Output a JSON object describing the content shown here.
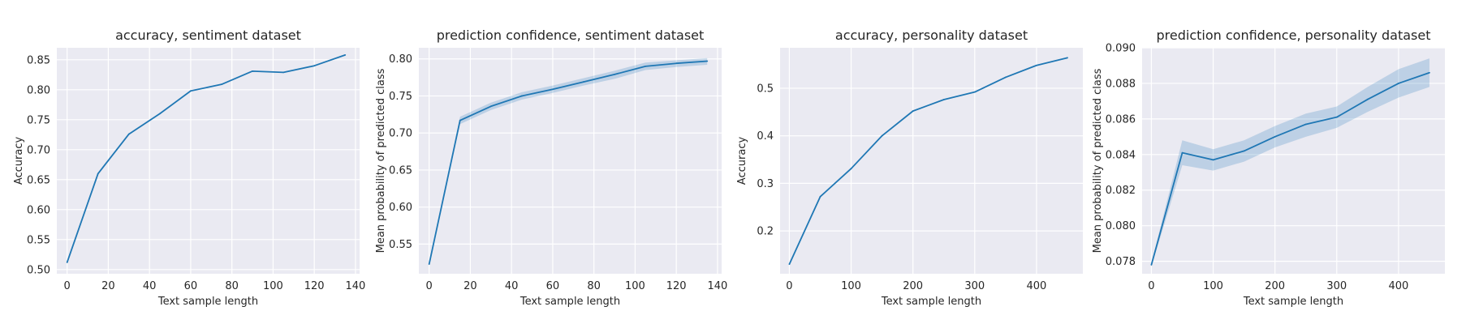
{
  "chart_data": [
    {
      "type": "line",
      "title": "accuracy, sentiment dataset",
      "xlabel": "Text sample length",
      "ylabel": "Accuracy",
      "xlim": [
        -5,
        142
      ],
      "ylim": [
        0.493,
        0.87
      ],
      "xticks": [
        0,
        20,
        40,
        60,
        80,
        100,
        120,
        140
      ],
      "yticks": [
        0.5,
        0.55,
        0.6,
        0.65,
        0.7,
        0.75,
        0.8,
        0.85
      ],
      "tick_decimals": 2,
      "grid": true,
      "series": [
        {
          "color": "#1f77b4",
          "x": [
            0,
            15,
            30,
            45,
            60,
            75,
            90,
            105,
            120,
            135
          ],
          "y": [
            0.512,
            0.66,
            0.726,
            0.76,
            0.798,
            0.809,
            0.831,
            0.829,
            0.84,
            0.858
          ]
        }
      ]
    },
    {
      "type": "line",
      "title": "prediction confidence, sentiment dataset",
      "xlabel": "Text sample length",
      "ylabel": "Mean probability of predicted class",
      "xlim": [
        -5,
        142
      ],
      "ylim": [
        0.51,
        0.815
      ],
      "xticks": [
        0,
        20,
        40,
        60,
        80,
        100,
        120,
        140
      ],
      "yticks": [
        0.55,
        0.6,
        0.65,
        0.7,
        0.75,
        0.8
      ],
      "tick_decimals": 2,
      "grid": true,
      "series": [
        {
          "color": "#1f77b4",
          "x": [
            0,
            15,
            30,
            45,
            60,
            75,
            90,
            105,
            120,
            135
          ],
          "y": [
            0.523,
            0.717,
            0.736,
            0.75,
            0.759,
            0.769,
            0.779,
            0.79,
            0.794,
            0.797
          ],
          "lower": [
            0.522,
            0.712,
            0.731,
            0.745,
            0.754,
            0.764,
            0.773,
            0.785,
            0.789,
            0.792
          ],
          "upper": [
            0.524,
            0.722,
            0.741,
            0.755,
            0.764,
            0.774,
            0.784,
            0.795,
            0.798,
            0.801
          ]
        }
      ]
    },
    {
      "type": "line",
      "title": "accuracy, personality dataset",
      "xlabel": "Text sample length",
      "ylabel": "Accuracy",
      "xlim": [
        -15,
        475
      ],
      "ylim": [
        0.11,
        0.585
      ],
      "xticks": [
        0,
        100,
        200,
        300,
        400
      ],
      "yticks": [
        0.2,
        0.3,
        0.4,
        0.5
      ],
      "tick_decimals": 1,
      "grid": true,
      "series": [
        {
          "color": "#1f77b4",
          "x": [
            0,
            50,
            100,
            150,
            200,
            250,
            300,
            350,
            400,
            450
          ],
          "y": [
            0.13,
            0.272,
            0.331,
            0.4,
            0.452,
            0.476,
            0.492,
            0.523,
            0.548,
            0.564
          ]
        }
      ]
    },
    {
      "type": "line",
      "title": "prediction confidence, personality dataset",
      "xlabel": "Text sample length",
      "ylabel": "Mean probability of predicted class",
      "xlim": [
        -15,
        475
      ],
      "ylim": [
        0.0773,
        0.09
      ],
      "xticks": [
        0,
        100,
        200,
        300,
        400
      ],
      "yticks": [
        0.078,
        0.08,
        0.082,
        0.084,
        0.086,
        0.088,
        0.09
      ],
      "tick_decimals": 3,
      "grid": true,
      "series": [
        {
          "color": "#1f77b4",
          "x": [
            0,
            50,
            100,
            150,
            200,
            250,
            300,
            350,
            400,
            450
          ],
          "y": [
            0.0778,
            0.0841,
            0.0837,
            0.0842,
            0.085,
            0.0857,
            0.0861,
            0.0871,
            0.088,
            0.0886
          ],
          "lower": [
            0.0777,
            0.0834,
            0.0831,
            0.0836,
            0.0844,
            0.085,
            0.0855,
            0.0864,
            0.0872,
            0.0878
          ],
          "upper": [
            0.0779,
            0.0848,
            0.0843,
            0.0848,
            0.0856,
            0.0863,
            0.0867,
            0.0878,
            0.0888,
            0.0894
          ]
        }
      ]
    }
  ]
}
